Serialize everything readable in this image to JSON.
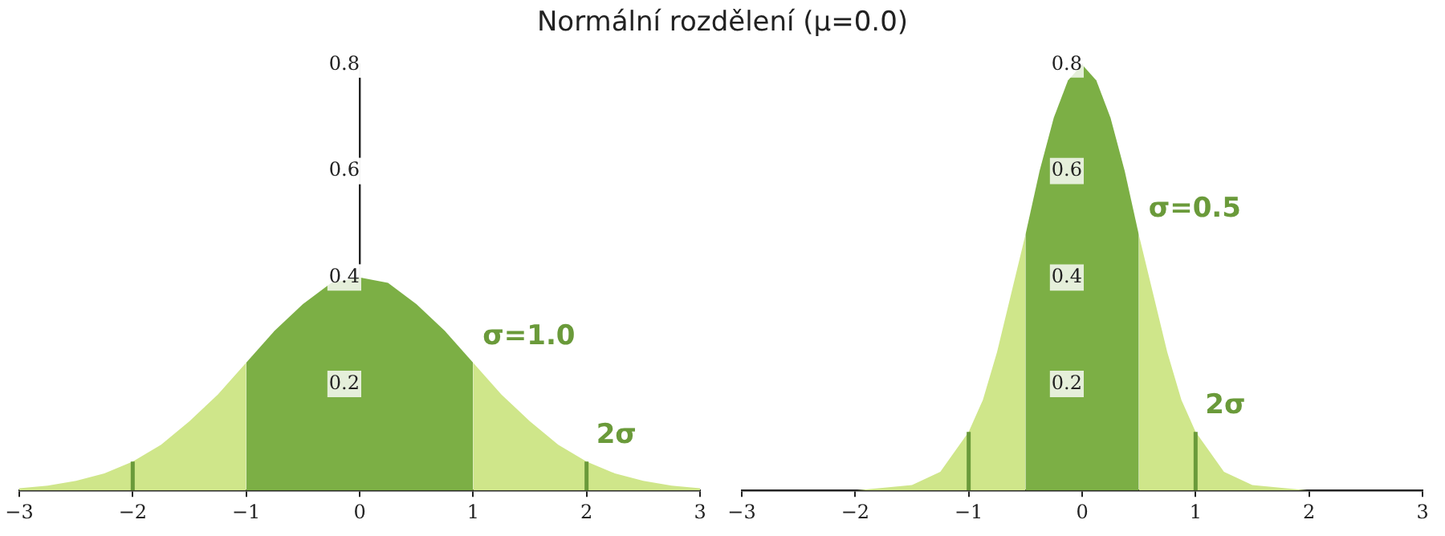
{
  "chart_data": [
    {
      "type": "area",
      "title": "Normální rozdělení (μ=0.0)",
      "xlim": [
        -3,
        3
      ],
      "xticks": [
        {
          "value": -3,
          "label": "−3"
        },
        {
          "value": -2,
          "label": "−2"
        },
        {
          "value": -1,
          "label": "−1"
        },
        0,
        1,
        2,
        3
      ],
      "ylim": [
        0,
        0.8
      ],
      "yticks": [
        0.2,
        0.4,
        0.6,
        0.8
      ],
      "series": [
        {
          "type": "area",
          "color": "#cfe68a",
          "x": [
            -3,
            -2.75,
            -2.5,
            -2.25,
            -2,
            -1.75,
            -1.5,
            -1.25,
            -1,
            -0.75,
            -0.5,
            -0.25,
            0,
            0.25,
            0.5,
            0.75,
            1,
            1.25,
            1.5,
            1.75,
            2,
            2.25,
            2.5,
            2.75,
            3
          ],
          "values": [
            0.004,
            0.009,
            0.018,
            0.032,
            0.054,
            0.086,
            0.13,
            0.18,
            0.24,
            null,
            null,
            null,
            null,
            null,
            null,
            null,
            0.24,
            0.18,
            0.13,
            0.086,
            0.054,
            0.032,
            0.018,
            0.009,
            0.004
          ]
        },
        {
          "type": "area",
          "color": "#7caf45",
          "x": [
            -1,
            -0.75,
            -0.5,
            -0.25,
            0,
            0.25,
            0.5,
            0.75,
            1
          ],
          "values": [
            0.24,
            0.3,
            0.35,
            0.39,
            0.4,
            0.39,
            0.35,
            0.3,
            0.24
          ]
        },
        {
          "type": "line",
          "color": "#6a9a3a",
          "x": [
            -2,
            -2
          ],
          "values": [
            0,
            0.054
          ]
        },
        {
          "type": "line",
          "color": "#6a9a3a",
          "x": [
            2,
            2
          ],
          "values": [
            0,
            0.054
          ]
        }
      ],
      "annotations": [
        "σ=1.0",
        "2σ"
      ]
    },
    {
      "type": "area",
      "xlim": [
        -3,
        3
      ],
      "xticks": [
        {
          "value": -3,
          "label": "−3"
        },
        {
          "value": -2,
          "label": "−2"
        },
        {
          "value": -1,
          "label": "−1"
        },
        0,
        1,
        2,
        3
      ],
      "ylim": [
        0,
        0.8
      ],
      "yticks": [
        0.2,
        0.4,
        0.6,
        0.8
      ],
      "series": [
        {
          "type": "area",
          "color": "#cfe68a",
          "x": [
            -3,
            -2,
            -1.5,
            -1.25,
            -1,
            -0.875,
            -0.75,
            -0.625,
            -0.5,
            -0.375,
            -0.25,
            -0.125,
            0,
            0.125,
            0.25,
            0.375,
            0.5,
            0.625,
            0.75,
            0.875,
            1,
            1.25,
            1.5,
            2,
            3
          ],
          "values": [
            0,
            0,
            0.01,
            0.035,
            0.11,
            0.17,
            0.26,
            0.37,
            0.48,
            null,
            null,
            null,
            null,
            null,
            null,
            null,
            0.48,
            0.37,
            0.26,
            0.17,
            0.11,
            0.035,
            0.01,
            0,
            0
          ]
        },
        {
          "type": "area",
          "color": "#7caf45",
          "x": [
            -0.5,
            -0.375,
            -0.25,
            -0.125,
            0,
            0.125,
            0.25,
            0.375,
            0.5
          ],
          "values": [
            0.48,
            0.6,
            0.7,
            0.77,
            0.8,
            0.77,
            0.7,
            0.6,
            0.48
          ]
        },
        {
          "type": "line",
          "color": "#6a9a3a",
          "x": [
            -1,
            -1
          ],
          "values": [
            0,
            0.11
          ]
        },
        {
          "type": "line",
          "color": "#6a9a3a",
          "x": [
            1,
            1
          ],
          "values": [
            0,
            0.11
          ]
        }
      ],
      "annotations": [
        "σ=0.5",
        "2σ"
      ]
    }
  ]
}
